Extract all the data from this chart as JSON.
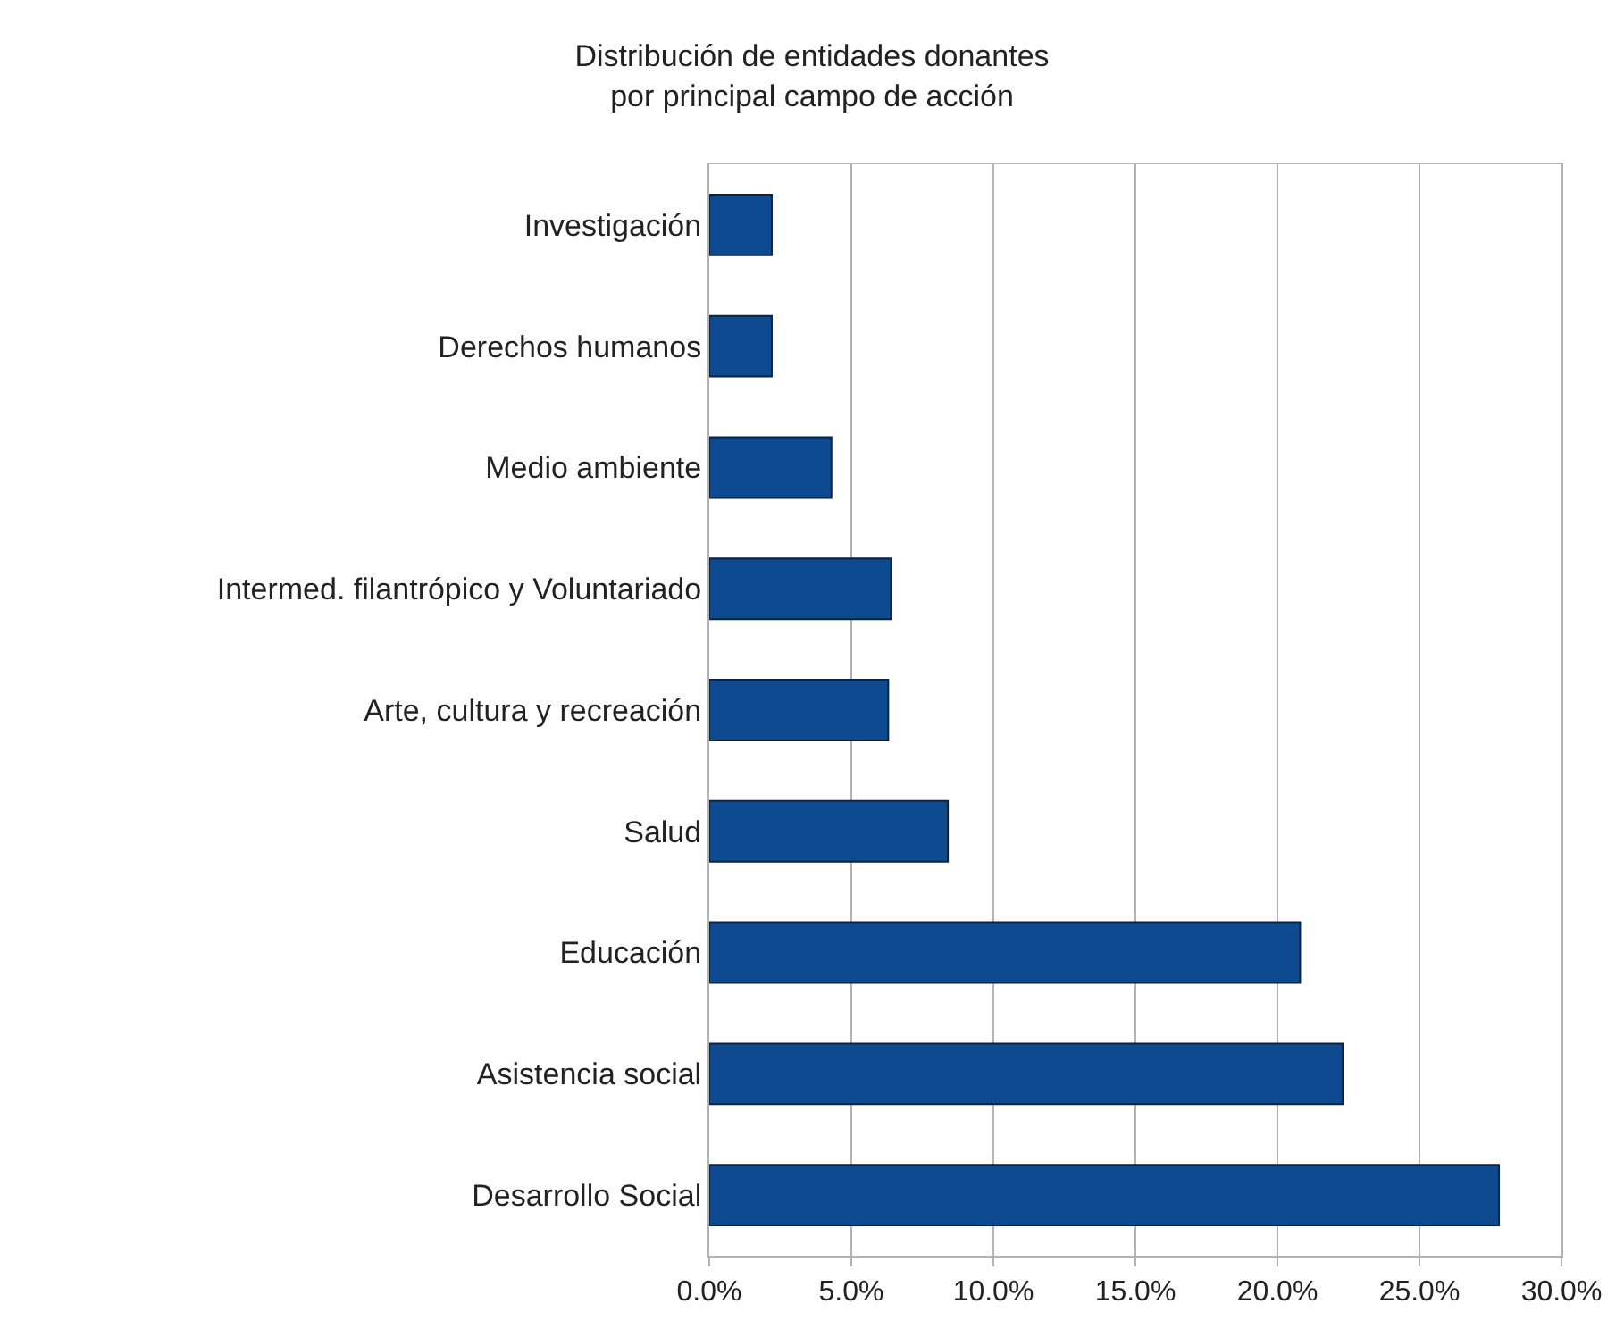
{
  "chart_data": {
    "type": "bar",
    "orientation": "horizontal",
    "title": "Distribución de entidades donantes\npor principal campo de acción",
    "categories": [
      "Investigación",
      "Derechos humanos",
      "Medio ambiente",
      "Intermed. filantrópico y Voluntariado",
      "Arte, cultura y recreación",
      "Salud",
      "Educación",
      "Asistencia social",
      "Desarrollo Social"
    ],
    "values": [
      2.2,
      2.2,
      4.3,
      6.4,
      6.3,
      8.4,
      20.8,
      22.3,
      27.8
    ],
    "color": "#0d4a8f",
    "xlim": [
      0,
      30
    ],
    "xticks": [
      {
        "value": 0,
        "label": "0.0%"
      },
      {
        "value": 5,
        "label": "5.0%"
      },
      {
        "value": 10,
        "label": "10.0%"
      },
      {
        "value": 15,
        "label": "15.0%"
      },
      {
        "value": 20,
        "label": "20.0%"
      },
      {
        "value": 25,
        "label": "25.0%"
      },
      {
        "value": 30,
        "label": "30.0%"
      }
    ],
    "grid": "x"
  }
}
